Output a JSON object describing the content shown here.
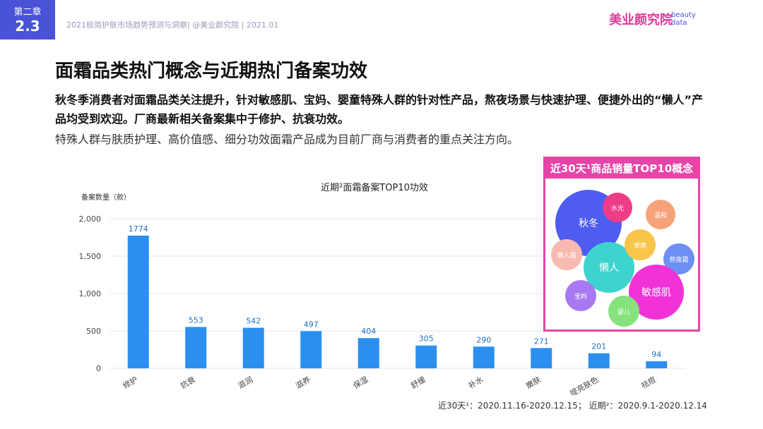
{
  "header": {
    "chapter_label": "第二章",
    "chapter_number": "2.3",
    "report_line": "2021极简护肤市场趋势预测与洞察| @美业颜究院 | 2021.01",
    "brand_name": "美业颜究院",
    "brand_sub_1": "beauty",
    "brand_sub_2": "data"
  },
  "title": "面霜品类热门概念与近期热门备案功效",
  "desc_bold": "秋冬季消费者对面霜品类关注提升，针对敏感肌、宝妈、婴童特殊人群的针对性产品，熬夜场景与快速护理、便捷外出的“懒人”产品均受到欢迎。厂商最新相关备案集中于修护、抗衰功效。",
  "desc_plain": "特殊人群与肤质护理、高价值感、细分功效面霜产品成为目前厂商与消费者的重点关注方向。",
  "chart_data": [
    {
      "type": "bar",
      "title": "近期²面霜备案TOP10功效",
      "ylabel": "备案数量（款）",
      "categories": [
        "修护",
        "抗衰",
        "滋润",
        "滋养",
        "保湿",
        "舒缓",
        "补水",
        "嫩肤",
        "提亮肤色",
        "祛痘"
      ],
      "values": [
        1774,
        553,
        542,
        497,
        404,
        305,
        290,
        271,
        201,
        94
      ],
      "ylim": [
        0,
        2000
      ],
      "yticks": [
        0,
        500,
        1000,
        1500,
        2000
      ],
      "ytick_labels": [
        "0",
        "500",
        "1,000",
        "1,500",
        "2,000"
      ],
      "bar_color": "#2b8ff0",
      "grid": true
    },
    {
      "type": "bubble",
      "title": "近30天¹商品销量TOP10概念",
      "bubbles": [
        {
          "label": "秋冬",
          "color": "#4f5cf0"
        },
        {
          "label": "水光",
          "color": "#ef3c86"
        },
        {
          "label": "温和",
          "color": "#f6a37b"
        },
        {
          "label": "懒人霜",
          "color": "#f7b9b0"
        },
        {
          "label": "懒人",
          "color": "#3fd3d0"
        },
        {
          "label": "便携",
          "color": "#f9c54a"
        },
        {
          "label": "熬夜霜",
          "color": "#6e8ff3"
        },
        {
          "label": "敏感肌",
          "color": "#f032d7"
        },
        {
          "label": "宝妈",
          "color": "#a779f2"
        },
        {
          "label": "婴儿",
          "color": "#86e27c"
        }
      ]
    }
  ],
  "footnote": "近30天¹：2020.11.16-2020.12.15；   近期²：2020.9.1-2020.12.14"
}
